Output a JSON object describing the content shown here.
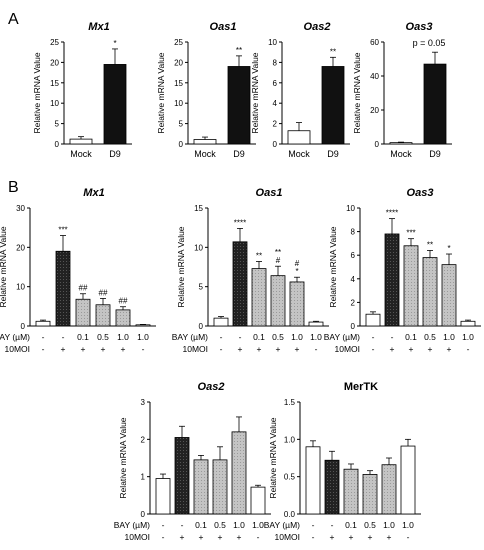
{
  "panel_labels": [
    "A",
    "B"
  ],
  "colors": {
    "white": "#ffffff",
    "black": "#111111",
    "dark_pattern": "#2a2a2a",
    "gray": "#b8b8b8",
    "axis": "#000000"
  },
  "chart_data": [
    {
      "id": "A-Mx1",
      "type": "bar",
      "title": "Mx1",
      "title_italic": true,
      "ylabel": "Relative mRNA Value",
      "ylim": [
        0,
        25
      ],
      "yticks": [
        0,
        5,
        10,
        15,
        20,
        25
      ],
      "categories": [
        "Mock",
        "D9"
      ],
      "values": [
        1.2,
        19.5
      ],
      "errors": [
        0.6,
        3.8
      ],
      "fills": [
        "white",
        "black"
      ],
      "annotations": [
        "",
        "*"
      ],
      "note": ""
    },
    {
      "id": "A-Oas1",
      "type": "bar",
      "title": "Oas1",
      "title_italic": true,
      "ylabel": "Relative mRNA Value",
      "ylim": [
        0,
        25
      ],
      "yticks": [
        0,
        5,
        10,
        15,
        20,
        25
      ],
      "categories": [
        "Mock",
        "D9"
      ],
      "values": [
        1.1,
        19.0
      ],
      "errors": [
        0.6,
        2.6
      ],
      "fills": [
        "white",
        "black"
      ],
      "annotations": [
        "",
        "**"
      ],
      "note": ""
    },
    {
      "id": "A-Oas2",
      "type": "bar",
      "title": "Oas2",
      "title_italic": true,
      "ylabel": "Relative mRNA Value",
      "ylim": [
        0,
        10
      ],
      "yticks": [
        0,
        2,
        4,
        6,
        8,
        10
      ],
      "categories": [
        "Mock",
        "D9"
      ],
      "values": [
        1.3,
        7.6
      ],
      "errors": [
        0.8,
        0.9
      ],
      "fills": [
        "white",
        "black"
      ],
      "annotations": [
        "",
        "**"
      ],
      "note": ""
    },
    {
      "id": "A-Oas3",
      "type": "bar",
      "title": "Oas3",
      "title_italic": true,
      "ylabel": "Relative mRNA Value",
      "ylim": [
        0,
        60
      ],
      "yticks": [
        0,
        20,
        40,
        60
      ],
      "categories": [
        "Mock",
        "D9"
      ],
      "values": [
        0.8,
        47
      ],
      "errors": [
        0.3,
        7
      ],
      "fills": [
        "white",
        "black"
      ],
      "annotations": [
        "",
        ""
      ],
      "note": "p = 0.05"
    },
    {
      "id": "B-Mx1",
      "type": "bar",
      "title": "Mx1",
      "title_italic": true,
      "ylabel": "Relative mRNA Value",
      "ylim": [
        0,
        30
      ],
      "yticks": [
        0,
        10,
        20,
        30
      ],
      "values": [
        1.2,
        19.0,
        6.8,
        5.4,
        4.1,
        0.3
      ],
      "errors": [
        0.3,
        4.0,
        1.4,
        1.6,
        0.8,
        0.1
      ],
      "fills": [
        "white",
        "dark",
        "gray",
        "gray",
        "gray",
        "white"
      ],
      "annotations": [
        "",
        "***",
        "##",
        "##",
        "##",
        ""
      ],
      "bay_row": {
        "label": "BAY (µM)",
        "values": [
          "-",
          "-",
          "0.1",
          "0.5",
          "1.0",
          "1.0"
        ]
      },
      "moi_row": {
        "label": "10MOI",
        "values": [
          "-",
          "+",
          "+",
          "+",
          "+",
          "-"
        ]
      }
    },
    {
      "id": "B-Oas1",
      "type": "bar",
      "title": "Oas1",
      "title_italic": true,
      "ylabel": "Relative mRNA Value",
      "ylim": [
        0,
        15
      ],
      "yticks": [
        0,
        5,
        10,
        15
      ],
      "values": [
        1.0,
        10.7,
        7.3,
        6.4,
        5.6,
        0.5
      ],
      "errors": [
        0.2,
        1.7,
        0.9,
        1.2,
        0.6,
        0.1
      ],
      "fills": [
        "white",
        "dark",
        "gray",
        "gray",
        "gray",
        "white"
      ],
      "annotations": [
        "",
        "****",
        "**",
        "**\n#",
        "#\n*",
        ""
      ],
      "bay_row": {
        "label": "BAY (µM)",
        "values": [
          "-",
          "-",
          "0.1",
          "0.5",
          "1.0",
          "1.0"
        ]
      },
      "moi_row": {
        "label": "10MOI",
        "values": [
          "-",
          "+",
          "+",
          "+",
          "+",
          "-"
        ]
      }
    },
    {
      "id": "B-Oas3",
      "type": "bar",
      "title": "Oas3",
      "title_italic": true,
      "ylabel": "Relative mRNA Value",
      "ylim": [
        0,
        10
      ],
      "yticks": [
        0,
        2,
        4,
        6,
        8,
        10
      ],
      "values": [
        1.0,
        7.8,
        6.8,
        5.8,
        5.2,
        0.4
      ],
      "errors": [
        0.2,
        1.3,
        0.6,
        0.6,
        0.9,
        0.1
      ],
      "fills": [
        "white",
        "dark",
        "gray",
        "gray",
        "gray",
        "white"
      ],
      "annotations": [
        "",
        "****",
        "***",
        "**",
        "*",
        ""
      ],
      "bay_row": {
        "label": "BAY (µM)",
        "values": [
          "-",
          "-",
          "0.1",
          "0.5",
          "1.0",
          "1.0"
        ]
      },
      "moi_row": {
        "label": "10MOI",
        "values": [
          "-",
          "+",
          "+",
          "+",
          "+",
          "-"
        ]
      }
    },
    {
      "id": "B-Oas2",
      "type": "bar",
      "title": "Oas2",
      "title_italic": true,
      "ylabel": "Relative mRNA Value",
      "ylim": [
        0,
        3
      ],
      "yticks": [
        0,
        1,
        2,
        3
      ],
      "values": [
        0.95,
        2.05,
        1.45,
        1.45,
        2.2,
        0.72
      ],
      "errors": [
        0.12,
        0.3,
        0.12,
        0.35,
        0.4,
        0.05
      ],
      "fills": [
        "white",
        "dark",
        "gray",
        "gray",
        "gray",
        "white"
      ],
      "annotations": [
        "",
        "",
        "",
        "",
        "",
        ""
      ],
      "bay_row": {
        "label": "BAY (µM)",
        "values": [
          "-",
          "-",
          "0.1",
          "0.5",
          "1.0",
          "1.0"
        ]
      },
      "moi_row": {
        "label": "10MOI",
        "values": [
          "-",
          "+",
          "+",
          "+",
          "+",
          "-"
        ]
      }
    },
    {
      "id": "B-MerTK",
      "type": "bar",
      "title": "MerTK",
      "title_italic": false,
      "ylabel": "Relative mRNA Value",
      "ylim": [
        0,
        1.5
      ],
      "yticks": [
        0.0,
        0.5,
        1.0,
        1.5
      ],
      "values": [
        0.9,
        0.72,
        0.6,
        0.53,
        0.66,
        0.91
      ],
      "errors": [
        0.08,
        0.12,
        0.07,
        0.05,
        0.09,
        0.09
      ],
      "fills": [
        "white",
        "dark",
        "gray",
        "gray",
        "gray",
        "white"
      ],
      "annotations": [
        "",
        "",
        "",
        "",
        "",
        ""
      ],
      "bay_row": {
        "label": "BAY (µM)",
        "values": [
          "-",
          "-",
          "0.1",
          "0.5",
          "1.0",
          "1.0"
        ]
      },
      "moi_row": {
        "label": "10MOI",
        "values": [
          "-",
          "+",
          "+",
          "+",
          "+",
          "-"
        ]
      }
    }
  ]
}
